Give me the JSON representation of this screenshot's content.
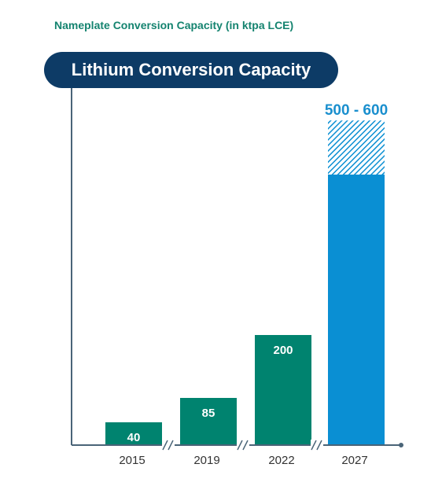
{
  "subtitle": "Nameplate Conversion Capacity (in ktpa LCE)",
  "title": "Lithium Conversion Capacity",
  "colors": {
    "title_bg": "#0d3b66",
    "subtitle": "#14836f",
    "bar_green": "#00836f",
    "bar_blue": "#0a8fd3",
    "axis": "#4a6478",
    "range_label": "#1a8fce"
  },
  "chart_data": {
    "type": "bar",
    "categories": [
      "2015",
      "2019",
      "2022",
      "2027"
    ],
    "values": [
      40,
      85,
      200,
      500
    ],
    "value_labels": [
      "40",
      "85",
      "200",
      ""
    ],
    "range_upper": [
      null,
      null,
      null,
      600
    ],
    "range_label": "500 - 600",
    "bar_colors": [
      "#00836f",
      "#00836f",
      "#00836f",
      "#0a8fd3"
    ],
    "axis_breaks": [
      "2015-2019",
      "2019-2022",
      "2022-2027"
    ],
    "ylim": [
      0,
      600
    ],
    "grid": false,
    "legend": "none"
  }
}
